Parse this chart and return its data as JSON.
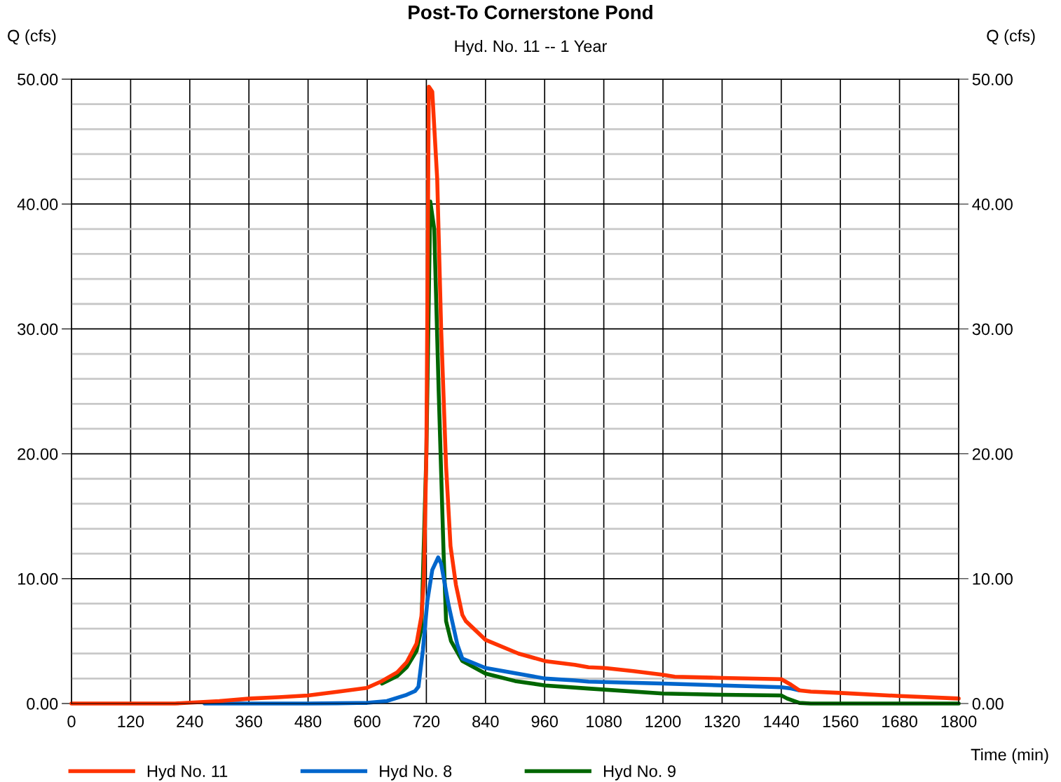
{
  "chart_data": {
    "type": "line",
    "title": "Post-To Cornerstone Pond",
    "subtitle": "Hyd. No. 11 -- 1 Year",
    "xlabel": "Time (min)",
    "ylabel": "Q (cfs)",
    "y2label": "Q (cfs)",
    "xlim": [
      0,
      1800
    ],
    "xticks": [
      0,
      120,
      240,
      360,
      480,
      600,
      720,
      840,
      960,
      1080,
      1200,
      1320,
      1440,
      1560,
      1680,
      1800
    ],
    "ylim": [
      0,
      50
    ],
    "yticks": [
      {
        "value": 0,
        "label": "0.00"
      },
      {
        "value": 2,
        "label": null
      },
      {
        "value": 4,
        "label": null
      },
      {
        "value": 6,
        "label": null
      },
      {
        "value": 8,
        "label": null
      },
      {
        "value": 10,
        "label": "10.00"
      },
      {
        "value": 12,
        "label": null
      },
      {
        "value": 14,
        "label": null
      },
      {
        "value": 16,
        "label": null
      },
      {
        "value": 18,
        "label": null
      },
      {
        "value": 20,
        "label": "20.00"
      },
      {
        "value": 22,
        "label": null
      },
      {
        "value": 24,
        "label": null
      },
      {
        "value": 26,
        "label": null
      },
      {
        "value": 28,
        "label": null
      },
      {
        "value": 30,
        "label": "30.00"
      },
      {
        "value": 32,
        "label": null
      },
      {
        "value": 34,
        "label": null
      },
      {
        "value": 36,
        "label": null
      },
      {
        "value": 38,
        "label": null
      },
      {
        "value": 40,
        "label": "40.00"
      },
      {
        "value": 42,
        "label": null
      },
      {
        "value": 44,
        "label": null
      },
      {
        "value": 46,
        "label": null
      },
      {
        "value": 48,
        "label": null
      },
      {
        "value": 50,
        "label": "50.00"
      }
    ],
    "y2lim": [
      0,
      50
    ],
    "y2ticks": [
      {
        "value": 0,
        "label": "0.00"
      },
      {
        "value": 10,
        "label": "10.00"
      },
      {
        "value": 20,
        "label": "20.00"
      },
      {
        "value": 30,
        "label": "30.00"
      },
      {
        "value": 40,
        "label": "40.00"
      },
      {
        "value": 50,
        "label": "50.00"
      }
    ],
    "grid": true,
    "legend": "bottom left",
    "marker": "none",
    "line_style": "solid",
    "series": [
      {
        "name": "Hyd No. 11",
        "color": "#ff3300",
        "x": [
          0,
          210,
          300,
          363,
          420,
          480,
          542,
          599,
          630,
          661,
          680,
          700,
          710,
          715,
          720,
          725,
          732,
          742,
          750,
          760,
          769,
          780,
          793,
          800,
          840,
          907,
          961,
          1021,
          1049,
          1081,
          1140,
          1200,
          1224,
          1320,
          1440,
          1460,
          1477,
          1500,
          1560,
          1680,
          1800
        ],
        "values": [
          0,
          0,
          0.2,
          0.4,
          0.5,
          0.65,
          0.95,
          1.25,
          1.8,
          2.5,
          3.3,
          4.8,
          7,
          10,
          20,
          49.4,
          49.0,
          42,
          30,
          19,
          12.6,
          9.5,
          7.1,
          6.6,
          5.1,
          4.0,
          3.4,
          3.1,
          2.9,
          2.85,
          2.6,
          2.3,
          2.15,
          2.05,
          1.95,
          1.5,
          1.05,
          0.95,
          0.85,
          0.6,
          0.4
        ]
      },
      {
        "name": "Hyd No. 8",
        "color": "#0066cc",
        "x": [
          270,
          480,
          540,
          600,
          640,
          680,
          697,
          704,
          713,
          722,
          732,
          744,
          750,
          765,
          783,
          793,
          840,
          961,
          1021,
          1049,
          1200,
          1440,
          1460,
          1477
        ],
        "values": [
          0,
          0,
          0.02,
          0.05,
          0.2,
          0.7,
          1.0,
          1.35,
          4.3,
          8.2,
          10.7,
          11.7,
          11.2,
          7.9,
          4.7,
          3.6,
          2.85,
          2.0,
          1.85,
          1.75,
          1.6,
          1.3,
          1.2,
          1.05
        ]
      },
      {
        "name": "Hyd No. 9",
        "color": "#006600",
        "x": [
          630,
          661,
          680,
          700,
          710,
          720,
          728,
          736,
          745,
          755,
          760,
          770,
          793,
          840,
          900,
          961,
          1049,
          1200,
          1320,
          1440,
          1452,
          1477,
          1500,
          1800
        ],
        "values": [
          1.6,
          2.2,
          2.9,
          4.2,
          6,
          20,
          40.2,
          38,
          25,
          12,
          6.6,
          5,
          3.4,
          2.4,
          1.8,
          1.45,
          1.2,
          0.8,
          0.7,
          0.65,
          0.4,
          0.05,
          0,
          0
        ]
      }
    ]
  }
}
